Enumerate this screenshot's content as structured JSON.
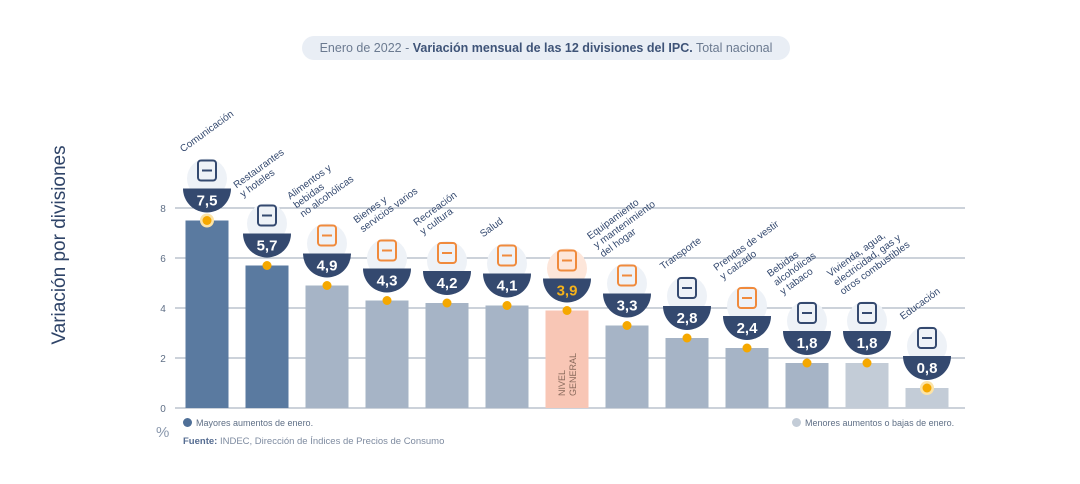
{
  "title": {
    "prefix": "Enero de 2022 - ",
    "bold": "Variación mensual de las 12 divisiones del IPC.",
    "suffix": " Total nacional"
  },
  "legend": {
    "high": "Mayores aumentos de enero.",
    "low": "Menores aumentos o bajas de enero.",
    "colors": {
      "high": "#5a7aa0",
      "low": "#c3ccd7",
      "general": "#f8c6b5",
      "medium": "#a6b4c6",
      "marker": "#f5a800"
    }
  },
  "source": {
    "label": "Fuente:",
    "text": " INDEC, Dirección de Índices de Precios de Consumo"
  },
  "chart_data": {
    "type": "bar",
    "ylabel": "Variación por divisiones",
    "yunit": "%",
    "ylim": [
      0,
      8
    ],
    "yticks": [
      0,
      2,
      4,
      6,
      8
    ],
    "grid": true,
    "categories": [
      "Comunicación",
      "Restaurantes y hoteles",
      "Alimentos y bebidas no alcohólicas",
      "Bienes y servicios varios",
      "Recreación y cultura",
      "Salud",
      "Nivel general",
      "Equipamiento y mantenimiento del hogar",
      "Transporte",
      "Prendas de vestir y calzado",
      "Bebidas alcohólicas y tabaco",
      "Vivienda, agua, electricidad, gas y otros combustibles",
      "Educación"
    ],
    "category_lines": [
      [
        "Comunicación"
      ],
      [
        "Restaurantes",
        "y hoteles"
      ],
      [
        "Alimentos y",
        "bebidas",
        "no alcohólicas"
      ],
      [
        "Bienes y",
        "servicios varios"
      ],
      [
        "Recreación",
        "y cultura"
      ],
      [
        "Salud"
      ],
      [],
      [
        "Equipamiento",
        "y mantenimiento",
        "del hogar"
      ],
      [
        "Transporte"
      ],
      [
        "Prendas de vestir",
        "y calzado"
      ],
      [
        "Bebidas",
        "alcohólicas",
        "y tabaco"
      ],
      [
        "Vivienda, agua,",
        "electricidad, gas y",
        "otros combustibles"
      ],
      [
        "Educación"
      ]
    ],
    "values": [
      7.5,
      5.7,
      4.9,
      4.3,
      4.2,
      4.1,
      3.9,
      3.3,
      2.8,
      2.4,
      1.8,
      1.8,
      0.8
    ],
    "value_labels": [
      "7,5",
      "5,7",
      "4,9",
      "4,3",
      "4,2",
      "4,1",
      "3,9",
      "3,3",
      "2,8",
      "2,4",
      "1,8",
      "1,8",
      "0,8"
    ],
    "bar_groups": [
      "high",
      "high",
      "medium",
      "medium",
      "medium",
      "medium",
      "general",
      "medium",
      "medium",
      "medium",
      "medium",
      "low",
      "low"
    ],
    "inside_bar_label_lines": [
      "NIVEL",
      "GENERAL"
    ],
    "icons": [
      "phone-icon",
      "cutlery-icon",
      "food-icon",
      "tools-icon",
      "recreation-icon",
      "health-icon",
      "shopping-icon",
      "washing-machine-icon",
      "bus-icon",
      "shirt-icon",
      "bottle-icon",
      "bulb-icon",
      "book-icon"
    ]
  }
}
